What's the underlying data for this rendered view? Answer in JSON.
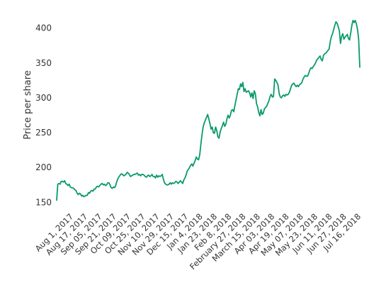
{
  "chart_data": {
    "type": "line",
    "title": "",
    "xlabel": "",
    "ylabel": "Price per share",
    "ylim": [
      135,
      420
    ],
    "y_ticks": [
      "150",
      "200",
      "250",
      "300",
      "350",
      "400"
    ],
    "grid": false,
    "legend": "none",
    "line_color": "#0a9a67",
    "x_tick_labels": [
      "Aug 1, 2017",
      "Aug 17, 2017",
      "Sep 05, 2017",
      "Sep 21, 2017",
      "Oct 09, 2017",
      "Oct 25, 2017",
      "Nov 10, 2017",
      "Nov 29, 2017",
      "Dec 15, 2017",
      "Jan 4, 2018",
      "Jan 23, 2018",
      "Feb 8, 2018",
      "February 27, 2018",
      "March 15, 2018",
      "Apr 03, 2018",
      "Apr 19, 2018",
      "May 07, 2018",
      "May 23, 2018",
      "Jun 11, 2018",
      "Jun 27, 2018",
      "Jul 16, 2018"
    ],
    "series": [
      {
        "values": [
          153,
          176,
          177,
          176,
          180,
          180,
          179,
          181,
          177,
          176,
          174,
          176,
          172,
          171,
          171,
          170,
          168,
          167,
          163,
          161,
          163,
          162,
          159,
          160,
          158,
          159,
          160,
          160,
          164,
          163,
          166,
          167,
          166,
          169,
          169,
          172,
          173,
          172,
          174,
          176,
          177,
          175,
          176,
          174,
          175,
          178,
          178,
          175,
          171,
          170,
          172,
          171,
          174,
          180,
          184,
          187,
          189,
          191,
          190,
          188,
          189,
          190,
          193,
          192,
          190,
          187,
          188,
          189,
          190,
          190,
          191,
          192,
          189,
          190,
          188,
          190,
          190,
          189,
          187,
          186,
          188,
          189,
          187,
          188,
          190,
          187,
          187,
          185,
          189,
          186,
          188,
          187,
          188,
          190,
          183,
          178,
          176,
          175,
          175,
          176,
          178,
          176,
          178,
          177,
          178,
          180,
          179,
          177,
          179,
          181,
          179,
          177,
          182,
          185,
          189,
          195,
          197,
          200,
          203,
          205,
          202,
          206,
          210,
          215,
          212,
          211,
          218,
          233,
          247,
          258,
          264,
          268,
          272,
          276,
          270,
          263,
          255,
          258,
          250,
          249,
          258,
          253,
          244,
          242,
          251,
          256,
          260,
          265,
          259,
          262,
          270,
          275,
          271,
          275,
          282,
          283,
          280,
          289,
          297,
          305,
          313,
          312,
          320,
          316,
          322,
          309,
          313,
          308,
          309,
          310,
          307,
          301,
          307,
          299,
          310,
          306,
          292,
          287,
          279,
          274,
          283,
          276,
          278,
          284,
          286,
          288,
          292,
          296,
          302,
          305,
          301,
          302,
          327,
          325,
          322,
          318,
          306,
          301,
          300,
          303,
          304,
          302,
          305,
          304,
          305,
          308,
          313,
          318,
          320,
          321,
          318,
          316,
          318,
          316,
          319,
          320,
          322,
          327,
          330,
          332,
          331,
          331,
          335,
          340,
          343,
          342,
          345,
          347,
          350,
          354,
          356,
          358,
          360,
          355,
          353,
          361,
          363,
          364,
          366,
          368,
          370,
          381,
          388,
          392,
          398,
          404,
          409,
          407,
          402,
          396,
          378,
          388,
          392,
          384,
          387,
          389,
          391,
          385,
          383,
          393,
          404,
          411,
          408,
          411,
          406,
          398,
          384,
          344
        ]
      }
    ]
  }
}
